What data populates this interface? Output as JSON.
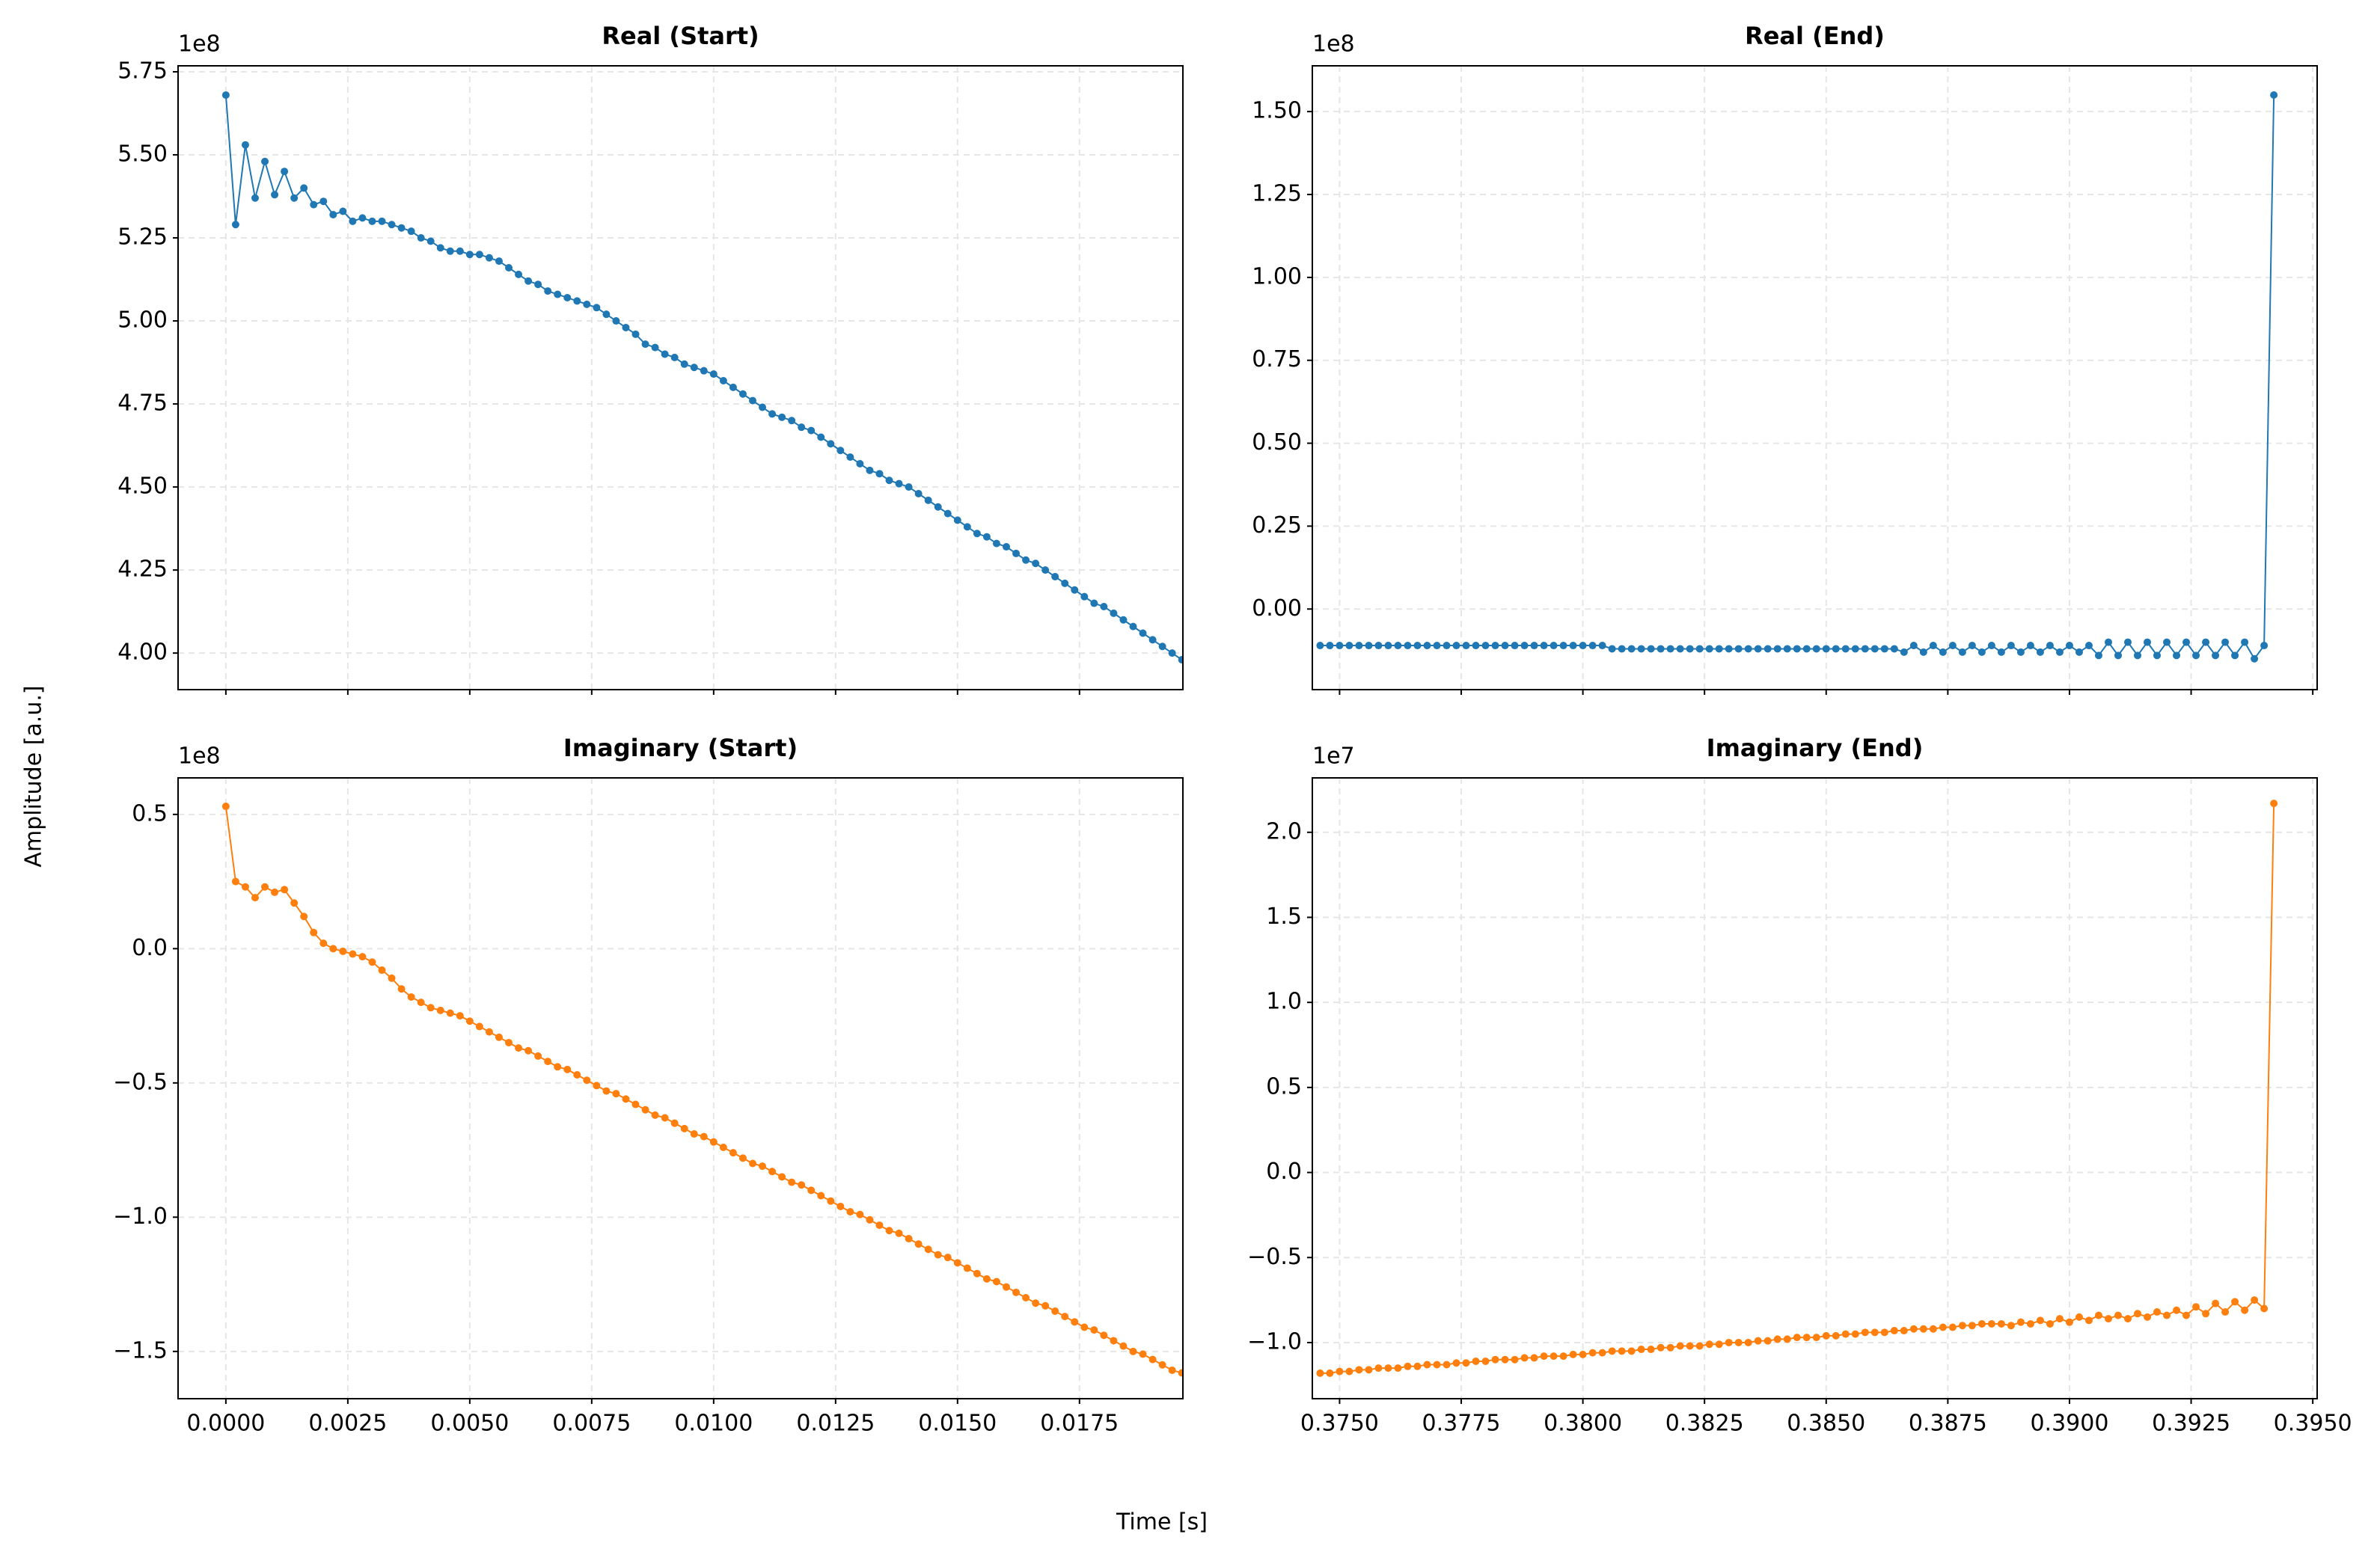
{
  "figure": {
    "xlabel": "Time [s]",
    "ylabel": "Amplitude [a.u.]"
  },
  "chart_data": [
    {
      "type": "line",
      "title": "Real (Start)",
      "offset_label": "1e8",
      "color": "#1f77b4",
      "grid": true,
      "xtick_labels": false,
      "xlim": [
        -0.00098,
        0.01962
      ],
      "ylim": [
        3.89,
        5.768
      ],
      "xticks": [
        {
          "value": 0,
          "label": "0.0000"
        },
        0.0025,
        {
          "value": 0.005,
          "label": "0.0050"
        },
        0.0075,
        {
          "value": 0.01,
          "label": "0.0100"
        },
        0.0125,
        {
          "value": 0.015,
          "label": "0.0150"
        },
        0.0175
      ],
      "yticks": [
        {
          "value": 4,
          "label": "4.00"
        },
        4.25,
        {
          "value": 4.5,
          "label": "4.50"
        },
        4.75,
        {
          "value": 5,
          "label": "5.00"
        },
        5.25,
        {
          "value": 5.5,
          "label": "5.50"
        },
        5.75
      ],
      "x": [
        0,
        0.0002,
        0.0004,
        0.0006,
        0.0008,
        0.001,
        0.0012,
        0.0014,
        0.0016,
        0.0018,
        0.002,
        0.0022,
        0.0024,
        0.0026,
        0.0028,
        0.003,
        0.0032,
        0.0034,
        0.0036,
        0.0038,
        0.004,
        0.0042,
        0.0044,
        0.0046,
        0.0048,
        0.005,
        0.0052,
        0.0054,
        0.0056,
        0.0058,
        0.006,
        0.0062,
        0.0064,
        0.0066,
        0.0068,
        0.007,
        0.0072,
        0.0074,
        0.0076,
        0.0078,
        0.008,
        0.0082,
        0.0084,
        0.0086,
        0.0088,
        0.009,
        0.0092,
        0.0094,
        0.0096,
        0.0098,
        0.01,
        0.0102,
        0.0104,
        0.0106,
        0.0108,
        0.011,
        0.0112,
        0.0114,
        0.0116,
        0.0118,
        0.012,
        0.0122,
        0.0124,
        0.0126,
        0.0128,
        0.013,
        0.0132,
        0.0134,
        0.0136,
        0.0138,
        0.014,
        0.0142,
        0.0144,
        0.0146,
        0.0148,
        0.015,
        0.0152,
        0.0154,
        0.0156,
        0.0158,
        0.016,
        0.0162,
        0.0164,
        0.0166,
        0.0168,
        0.017,
        0.0172,
        0.0174,
        0.0176,
        0.0178,
        0.018,
        0.0182,
        0.0184,
        0.0186,
        0.0188,
        0.019,
        0.0192,
        0.0194,
        0.0196
      ],
      "values": [
        5.68,
        5.29,
        5.53,
        5.37,
        5.48,
        5.38,
        5.45,
        5.37,
        5.4,
        5.35,
        5.36,
        5.32,
        5.33,
        5.3,
        5.31,
        5.3,
        5.3,
        5.29,
        5.28,
        5.27,
        5.25,
        5.24,
        5.22,
        5.21,
        5.21,
        5.2,
        5.2,
        5.19,
        5.18,
        5.16,
        5.14,
        5.12,
        5.11,
        5.09,
        5.08,
        5.07,
        5.06,
        5.05,
        5.04,
        5.02,
        5.0,
        4.98,
        4.96,
        4.93,
        4.92,
        4.9,
        4.89,
        4.87,
        4.86,
        4.85,
        4.84,
        4.82,
        4.8,
        4.78,
        4.76,
        4.74,
        4.72,
        4.71,
        4.7,
        4.68,
        4.67,
        4.65,
        4.63,
        4.61,
        4.59,
        4.57,
        4.55,
        4.54,
        4.52,
        4.51,
        4.5,
        4.48,
        4.46,
        4.44,
        4.42,
        4.4,
        4.38,
        4.36,
        4.35,
        4.33,
        4.32,
        4.3,
        4.28,
        4.27,
        4.25,
        4.23,
        4.21,
        4.19,
        4.17,
        4.15,
        4.14,
        4.12,
        4.1,
        4.08,
        4.06,
        4.04,
        4.02,
        4.0,
        3.98
      ]
    },
    {
      "type": "line",
      "title": "Real (End)",
      "offset_label": "1e8",
      "color": "#1f77b4",
      "grid": true,
      "xtick_labels": false,
      "xlim": [
        0.37444,
        0.39509
      ],
      "ylim": [
        -0.243,
        1.638
      ],
      "xticks": [
        {
          "value": 0.375,
          "label": "0.3750"
        },
        0.3775,
        {
          "value": 0.38,
          "label": "0.3800"
        },
        0.3825,
        {
          "value": 0.385,
          "label": "0.3850"
        },
        0.3875,
        {
          "value": 0.39,
          "label": "0.3900"
        },
        0.3925,
        {
          "value": 0.395,
          "label": "0.3950"
        }
      ],
      "yticks": [
        {
          "value": 0,
          "label": "0.00"
        },
        0.25,
        {
          "value": 0.5,
          "label": "0.50"
        },
        0.75,
        {
          "value": 1,
          "label": "1.00"
        },
        1.25,
        {
          "value": 1.5,
          "label": "1.50"
        }
      ],
      "x": [
        0.3746,
        0.3748,
        0.375,
        0.3752,
        0.3754,
        0.3756,
        0.3758,
        0.376,
        0.3762,
        0.3764,
        0.3766,
        0.3768,
        0.377,
        0.3772,
        0.3774,
        0.3776,
        0.3778,
        0.378,
        0.3782,
        0.3784,
        0.3786,
        0.3788,
        0.379,
        0.3792,
        0.3794,
        0.3796,
        0.3798,
        0.38,
        0.3802,
        0.3804,
        0.3806,
        0.3808,
        0.381,
        0.3812,
        0.3814,
        0.3816,
        0.3818,
        0.382,
        0.3822,
        0.3824,
        0.3826,
        0.3828,
        0.383,
        0.3832,
        0.3834,
        0.3836,
        0.3838,
        0.384,
        0.3842,
        0.3844,
        0.3846,
        0.3848,
        0.385,
        0.3852,
        0.3854,
        0.3856,
        0.3858,
        0.386,
        0.3862,
        0.3864,
        0.3866,
        0.3868,
        0.387,
        0.3872,
        0.3874,
        0.3876,
        0.3878,
        0.388,
        0.3882,
        0.3884,
        0.3886,
        0.3888,
        0.389,
        0.3892,
        0.3894,
        0.3896,
        0.3898,
        0.39,
        0.3902,
        0.3904,
        0.3906,
        0.3908,
        0.391,
        0.3912,
        0.3914,
        0.3916,
        0.3918,
        0.392,
        0.3922,
        0.3924,
        0.3926,
        0.3928,
        0.393,
        0.3932,
        0.3934,
        0.3936,
        0.3938,
        0.394,
        0.3942
      ],
      "values": [
        -0.11,
        -0.11,
        -0.11,
        -0.11,
        -0.11,
        -0.11,
        -0.11,
        -0.11,
        -0.11,
        -0.11,
        -0.11,
        -0.11,
        -0.11,
        -0.11,
        -0.11,
        -0.11,
        -0.11,
        -0.11,
        -0.11,
        -0.11,
        -0.11,
        -0.11,
        -0.11,
        -0.11,
        -0.11,
        -0.11,
        -0.11,
        -0.11,
        -0.11,
        -0.11,
        -0.12,
        -0.12,
        -0.12,
        -0.12,
        -0.12,
        -0.12,
        -0.12,
        -0.12,
        -0.12,
        -0.12,
        -0.12,
        -0.12,
        -0.12,
        -0.12,
        -0.12,
        -0.12,
        -0.12,
        -0.12,
        -0.12,
        -0.12,
        -0.12,
        -0.12,
        -0.12,
        -0.12,
        -0.12,
        -0.12,
        -0.12,
        -0.12,
        -0.12,
        -0.12,
        -0.13,
        -0.11,
        -0.13,
        -0.11,
        -0.13,
        -0.11,
        -0.13,
        -0.11,
        -0.13,
        -0.11,
        -0.13,
        -0.11,
        -0.13,
        -0.11,
        -0.13,
        -0.11,
        -0.13,
        -0.11,
        -0.13,
        -0.11,
        -0.14,
        -0.1,
        -0.14,
        -0.1,
        -0.14,
        -0.1,
        -0.14,
        -0.1,
        -0.14,
        -0.1,
        -0.14,
        -0.1,
        -0.14,
        -0.1,
        -0.14,
        -0.1,
        -0.15,
        -0.11,
        1.55
      ]
    },
    {
      "type": "line",
      "title": "Imaginary (Start)",
      "offset_label": "1e8",
      "color": "#ff7f0e",
      "grid": true,
      "xtick_labels": true,
      "xlim": [
        -0.00098,
        0.01962
      ],
      "ylim": [
        -1.676,
        0.636
      ],
      "xticks": [
        {
          "value": 0,
          "label": "0.0000"
        },
        0.0025,
        {
          "value": 0.005,
          "label": "0.0050"
        },
        0.0075,
        {
          "value": 0.01,
          "label": "0.0100"
        },
        0.0125,
        {
          "value": 0.015,
          "label": "0.0150"
        },
        0.0175
      ],
      "yticks": [
        {
          "value": -1.5,
          "label": "−1.5"
        },
        {
          "value": -1,
          "label": "−1.0"
        },
        {
          "value": -0.5,
          "label": "−0.5"
        },
        {
          "value": 0,
          "label": "0.0"
        },
        0.5
      ],
      "x": [
        0,
        0.0002,
        0.0004,
        0.0006,
        0.0008,
        0.001,
        0.0012,
        0.0014,
        0.0016,
        0.0018,
        0.002,
        0.0022,
        0.0024,
        0.0026,
        0.0028,
        0.003,
        0.0032,
        0.0034,
        0.0036,
        0.0038,
        0.004,
        0.0042,
        0.0044,
        0.0046,
        0.0048,
        0.005,
        0.0052,
        0.0054,
        0.0056,
        0.0058,
        0.006,
        0.0062,
        0.0064,
        0.0066,
        0.0068,
        0.007,
        0.0072,
        0.0074,
        0.0076,
        0.0078,
        0.008,
        0.0082,
        0.0084,
        0.0086,
        0.0088,
        0.009,
        0.0092,
        0.0094,
        0.0096,
        0.0098,
        0.01,
        0.0102,
        0.0104,
        0.0106,
        0.0108,
        0.011,
        0.0112,
        0.0114,
        0.0116,
        0.0118,
        0.012,
        0.0122,
        0.0124,
        0.0126,
        0.0128,
        0.013,
        0.0132,
        0.0134,
        0.0136,
        0.0138,
        0.014,
        0.0142,
        0.0144,
        0.0146,
        0.0148,
        0.015,
        0.0152,
        0.0154,
        0.0156,
        0.0158,
        0.016,
        0.0162,
        0.0164,
        0.0166,
        0.0168,
        0.017,
        0.0172,
        0.0174,
        0.0176,
        0.0178,
        0.018,
        0.0182,
        0.0184,
        0.0186,
        0.0188,
        0.019,
        0.0192,
        0.0194,
        0.0196
      ],
      "values": [
        0.53,
        0.25,
        0.23,
        0.19,
        0.23,
        0.21,
        0.22,
        0.17,
        0.12,
        0.06,
        0.02,
        0.0,
        -0.01,
        -0.02,
        -0.03,
        -0.05,
        -0.08,
        -0.11,
        -0.15,
        -0.18,
        -0.2,
        -0.22,
        -0.23,
        -0.24,
        -0.25,
        -0.27,
        -0.29,
        -0.31,
        -0.33,
        -0.35,
        -0.37,
        -0.38,
        -0.4,
        -0.42,
        -0.44,
        -0.45,
        -0.47,
        -0.49,
        -0.51,
        -0.53,
        -0.54,
        -0.56,
        -0.58,
        -0.6,
        -0.62,
        -0.63,
        -0.65,
        -0.67,
        -0.69,
        -0.7,
        -0.72,
        -0.74,
        -0.76,
        -0.78,
        -0.8,
        -0.81,
        -0.83,
        -0.85,
        -0.87,
        -0.88,
        -0.9,
        -0.92,
        -0.94,
        -0.96,
        -0.98,
        -0.99,
        -1.01,
        -1.03,
        -1.05,
        -1.06,
        -1.08,
        -1.1,
        -1.12,
        -1.14,
        -1.15,
        -1.17,
        -1.19,
        -1.21,
        -1.23,
        -1.24,
        -1.26,
        -1.28,
        -1.3,
        -1.32,
        -1.33,
        -1.35,
        -1.37,
        -1.39,
        -1.41,
        -1.42,
        -1.44,
        -1.46,
        -1.48,
        -1.5,
        -1.51,
        -1.53,
        -1.55,
        -1.57,
        -1.58
      ]
    },
    {
      "type": "line",
      "title": "Imaginary (End)",
      "offset_label": "1e7",
      "color": "#ff7f0e",
      "grid": true,
      "xtick_labels": true,
      "xlim": [
        0.37444,
        0.39509
      ],
      "ylim": [
        -1.33,
        2.32
      ],
      "xticks": [
        {
          "value": 0.375,
          "label": "0.3750"
        },
        0.3775,
        {
          "value": 0.38,
          "label": "0.3800"
        },
        0.3825,
        {
          "value": 0.385,
          "label": "0.3850"
        },
        0.3875,
        {
          "value": 0.39,
          "label": "0.3900"
        },
        0.3925,
        {
          "value": 0.395,
          "label": "0.3950"
        }
      ],
      "yticks": [
        {
          "value": -1,
          "label": "−1.0"
        },
        {
          "value": -0.5,
          "label": "−0.5"
        },
        {
          "value": 0,
          "label": "0.0"
        },
        0.5,
        {
          "value": 1,
          "label": "1.0"
        },
        1.5,
        {
          "value": 2,
          "label": "2.0"
        }
      ],
      "x": [
        0.3746,
        0.3748,
        0.375,
        0.3752,
        0.3754,
        0.3756,
        0.3758,
        0.376,
        0.3762,
        0.3764,
        0.3766,
        0.3768,
        0.377,
        0.3772,
        0.3774,
        0.3776,
        0.3778,
        0.378,
        0.3782,
        0.3784,
        0.3786,
        0.3788,
        0.379,
        0.3792,
        0.3794,
        0.3796,
        0.3798,
        0.38,
        0.3802,
        0.3804,
        0.3806,
        0.3808,
        0.381,
        0.3812,
        0.3814,
        0.3816,
        0.3818,
        0.382,
        0.3822,
        0.3824,
        0.3826,
        0.3828,
        0.383,
        0.3832,
        0.3834,
        0.3836,
        0.3838,
        0.384,
        0.3842,
        0.3844,
        0.3846,
        0.3848,
        0.385,
        0.3852,
        0.3854,
        0.3856,
        0.3858,
        0.386,
        0.3862,
        0.3864,
        0.3866,
        0.3868,
        0.387,
        0.3872,
        0.3874,
        0.3876,
        0.3878,
        0.388,
        0.3882,
        0.3884,
        0.3886,
        0.3888,
        0.389,
        0.3892,
        0.3894,
        0.3896,
        0.3898,
        0.39,
        0.3902,
        0.3904,
        0.3906,
        0.3908,
        0.391,
        0.3912,
        0.3914,
        0.3916,
        0.3918,
        0.392,
        0.3922,
        0.3924,
        0.3926,
        0.3928,
        0.393,
        0.3932,
        0.3934,
        0.3936,
        0.3938,
        0.394,
        0.3942
      ],
      "values": [
        -1.18,
        -1.18,
        -1.17,
        -1.17,
        -1.16,
        -1.16,
        -1.15,
        -1.15,
        -1.15,
        -1.14,
        -1.14,
        -1.13,
        -1.13,
        -1.13,
        -1.12,
        -1.12,
        -1.11,
        -1.11,
        -1.1,
        -1.1,
        -1.1,
        -1.09,
        -1.09,
        -1.08,
        -1.08,
        -1.08,
        -1.07,
        -1.07,
        -1.06,
        -1.06,
        -1.05,
        -1.05,
        -1.05,
        -1.04,
        -1.04,
        -1.03,
        -1.03,
        -1.02,
        -1.02,
        -1.02,
        -1.01,
        -1.01,
        -1.0,
        -1.0,
        -1.0,
        -0.99,
        -0.99,
        -0.98,
        -0.98,
        -0.97,
        -0.97,
        -0.97,
        -0.96,
        -0.96,
        -0.95,
        -0.95,
        -0.94,
        -0.94,
        -0.94,
        -0.93,
        -0.93,
        -0.92,
        -0.92,
        -0.92,
        -0.91,
        -0.91,
        -0.9,
        -0.9,
        -0.89,
        -0.89,
        -0.89,
        -0.9,
        -0.88,
        -0.89,
        -0.87,
        -0.89,
        -0.86,
        -0.88,
        -0.85,
        -0.87,
        -0.84,
        -0.86,
        -0.84,
        -0.86,
        -0.83,
        -0.85,
        -0.82,
        -0.84,
        -0.81,
        -0.84,
        -0.79,
        -0.83,
        -0.77,
        -0.82,
        -0.76,
        -0.81,
        -0.75,
        -0.8,
        2.17
      ]
    }
  ]
}
